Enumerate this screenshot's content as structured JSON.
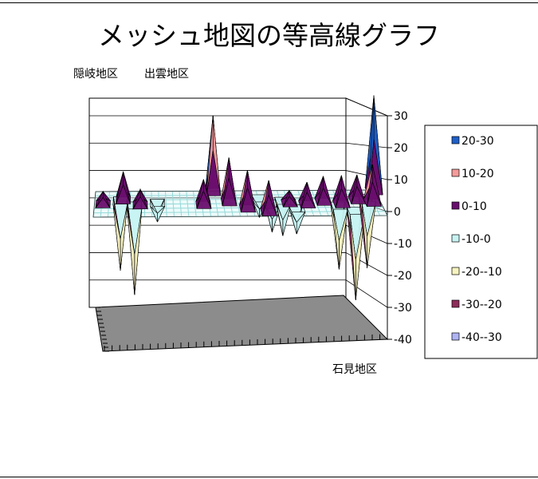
{
  "chart_data": {
    "type": "surface",
    "title": "メッシュ地図の等高線グラフ",
    "region_labels": {
      "back_left": "隠岐地区",
      "back_mid": "出雲地区",
      "front_right": "石見地区"
    },
    "zlim": [
      -40,
      30
    ],
    "z_ticks": [
      "30",
      "20",
      "10",
      "0",
      "-10",
      "-20",
      "-30",
      "-40"
    ],
    "legend_position": "right",
    "legend": [
      {
        "label": "20-30",
        "color": "#1f5fc8"
      },
      {
        "label": "10-20",
        "color": "#f59a9a"
      },
      {
        "label": "0-10",
        "color": "#6a0e6e"
      },
      {
        "label": "-10-0",
        "color": "#c8f3f3"
      },
      {
        "label": "-20--10",
        "color": "#f7f3bf"
      },
      {
        "label": "-30--20",
        "color": "#8e2c5a"
      },
      {
        "label": "-40--30",
        "color": "#aeb4f4"
      }
    ],
    "peaks": [
      {
        "at": [
          0.03,
          0.5
        ],
        "z": 4
      },
      {
        "at": [
          0.1,
          0.35
        ],
        "z": 9
      },
      {
        "at": [
          0.16,
          0.55
        ],
        "z": 5
      },
      {
        "at": [
          0.42,
          0.05
        ],
        "z": 24
      },
      {
        "at": [
          0.47,
          0.45
        ],
        "z": 14
      },
      {
        "at": [
          0.53,
          0.7
        ],
        "z": 12
      },
      {
        "at": [
          0.6,
          0.85
        ],
        "z": 10
      },
      {
        "at": [
          0.38,
          0.55
        ],
        "z": 8
      },
      {
        "at": [
          0.68,
          0.5
        ],
        "z": 4
      },
      {
        "at": [
          0.74,
          0.55
        ],
        "z": 7
      },
      {
        "at": [
          0.8,
          0.45
        ],
        "z": 8
      },
      {
        "at": [
          0.86,
          0.55
        ],
        "z": 9
      },
      {
        "at": [
          0.92,
          0.4
        ],
        "z": 8
      },
      {
        "at": [
          0.995,
          0.05
        ],
        "z": 30
      },
      {
        "at": [
          0.97,
          0.5
        ],
        "z": 12
      }
    ],
    "pits": [
      {
        "at": [
          0.09,
          0.35
        ],
        "z": -22
      },
      {
        "at": [
          0.14,
          0.55
        ],
        "z": -28
      },
      {
        "at": [
          0.22,
          0.45
        ],
        "z": -6
      },
      {
        "at": [
          0.58,
          0.3
        ],
        "z": -6
      },
      {
        "at": [
          0.62,
          0.5
        ],
        "z": -9
      },
      {
        "at": [
          0.66,
          0.4
        ],
        "z": -11
      },
      {
        "at": [
          0.7,
          0.7
        ],
        "z": -8
      },
      {
        "at": [
          0.85,
          0.6
        ],
        "z": -20
      },
      {
        "at": [
          0.9,
          0.8
        ],
        "z": -28
      },
      {
        "at": [
          0.96,
          0.3
        ],
        "z": -22
      }
    ]
  }
}
